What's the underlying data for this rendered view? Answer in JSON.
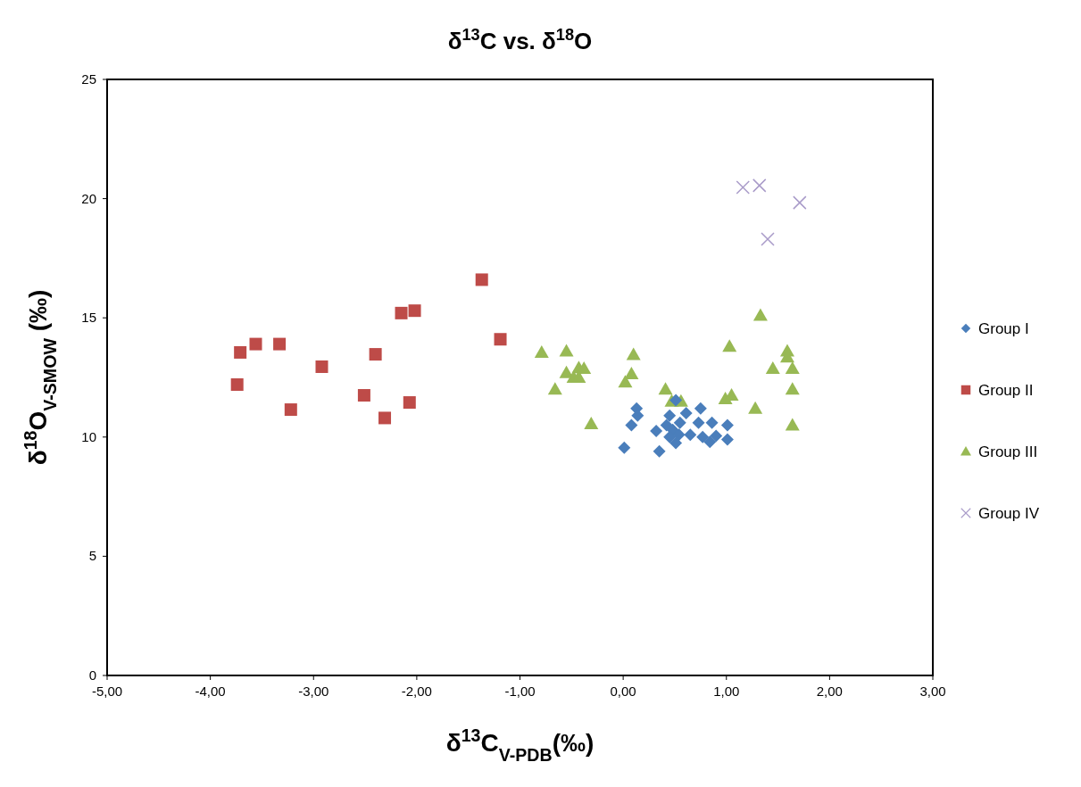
{
  "chart_data": {
    "type": "scatter",
    "title": "δ$^{13}$C vs. δ$^{18}$O",
    "xlabel": "δ$^{13}$C$_{V-PDB}$(‰)",
    "ylabel": "δ$^{18}$O$_{V-SMOW}$ (‰)",
    "xlim": [
      -5,
      3
    ],
    "xticks": [
      {
        "value": -5,
        "label": "-5,00"
      },
      {
        "value": -4,
        "label": "-4,00"
      },
      {
        "value": -3,
        "label": "-3,00"
      },
      {
        "value": -2,
        "label": "-2,00"
      },
      {
        "value": -1,
        "label": "-1,00"
      },
      {
        "value": 0,
        "label": "0,00"
      },
      {
        "value": 1,
        "label": "1,00"
      },
      {
        "value": 2,
        "label": "2,00"
      },
      {
        "value": 3,
        "label": "3,00"
      }
    ],
    "ylim": [
      0,
      25
    ],
    "yticks": [
      0,
      5,
      10,
      15,
      20,
      25
    ],
    "grid": false,
    "legend": "right",
    "series": [
      {
        "name": "Group I",
        "color": "#4a7ebb",
        "marker": "diamond",
        "x": [
          0.13,
          0.14,
          0.08,
          0.01,
          0.35,
          0.32,
          0.51,
          0.45,
          0.42,
          0.48,
          0.45,
          0.51,
          0.55,
          0.61,
          0.75,
          0.73,
          0.86,
          1.01,
          0.65,
          0.77,
          0.84,
          0.9,
          1.01,
          0.54
        ],
        "values": [
          11.2,
          10.9,
          10.5,
          9.55,
          9.4,
          10.25,
          11.55,
          10.9,
          10.5,
          10.3,
          10.0,
          9.75,
          10.6,
          11.0,
          11.2,
          10.6,
          10.6,
          10.5,
          10.1,
          10.0,
          9.8,
          10.05,
          9.9,
          10.1
        ]
      },
      {
        "name": "Group II",
        "color": "#be4b48",
        "marker": "square",
        "x": [
          -3.74,
          -3.71,
          -3.56,
          -3.33,
          -3.22,
          -2.92,
          -2.51,
          -2.4,
          -2.31,
          -2.15,
          -2.02,
          -2.07,
          -1.37,
          -1.19
        ],
        "values": [
          12.2,
          13.55,
          13.9,
          13.9,
          11.15,
          12.95,
          11.75,
          13.47,
          10.8,
          15.2,
          15.3,
          11.45,
          16.6,
          14.1
        ]
      },
      {
        "name": "Group III",
        "color": "#98b954",
        "marker": "triangle",
        "x": [
          -0.79,
          -0.55,
          -0.43,
          -0.38,
          -0.55,
          -0.48,
          -0.43,
          -0.66,
          -0.31,
          0.1,
          0.08,
          0.02,
          0.41,
          0.47,
          0.56,
          1.33,
          1.03,
          0.99,
          1.05,
          1.28,
          1.45,
          1.59,
          1.59,
          1.64,
          1.64,
          1.64
        ],
        "values": [
          13.55,
          13.6,
          12.9,
          12.87,
          12.7,
          12.5,
          12.5,
          12.0,
          10.55,
          13.45,
          12.65,
          12.3,
          12.0,
          11.5,
          11.5,
          15.1,
          13.8,
          11.6,
          11.75,
          11.2,
          12.87,
          13.6,
          13.35,
          12.87,
          12.0,
          10.5
        ]
      },
      {
        "name": "Group IV",
        "color": "#a99bc9",
        "marker": "cross",
        "x": [
          1.16,
          1.32,
          1.4,
          1.71
        ],
        "values": [
          20.47,
          20.55,
          18.3,
          19.83
        ]
      }
    ]
  }
}
